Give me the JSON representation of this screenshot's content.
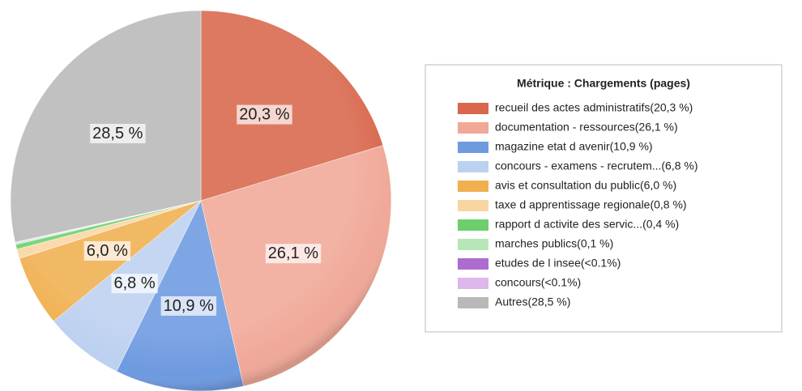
{
  "chart_data": {
    "type": "pie",
    "legend_title": "Métrique :  Chargements (pages)",
    "categories": [
      "recueil des actes administratifs(20,3 %)",
      "documentation - ressources(26,1 %)",
      "magazine etat d avenir(10,9 %)",
      "concours - examens - recrutem...(6,8 %)",
      "avis et consultation du public(6,0 %)",
      "taxe d apprentissage regionale(0,8 %)",
      "rapport d activite des servic...(0,4 %)",
      "marches publics(0,1 %)",
      "etudes de l insee(<0.1%)",
      "concours(<0.1%)",
      "Autres(28,5 %)"
    ],
    "values": [
      20.3,
      26.1,
      10.9,
      6.8,
      6.0,
      0.8,
      0.4,
      0.1,
      0.05,
      0.05,
      28.5
    ],
    "value_labels": [
      "20,3 %",
      "26,1 %",
      "10,9 %",
      "6,8 %",
      "6,0 %",
      null,
      null,
      null,
      null,
      null,
      "28,5 %"
    ],
    "colors": [
      "#d8674c",
      "#f0a898",
      "#6e9ae0",
      "#bcd0f0",
      "#f0b050",
      "#f8d6a2",
      "#6ccf6c",
      "#b8e6b8",
      "#ad6ccf",
      "#dcb8ec",
      "#b9b9b9"
    ],
    "legend": "right"
  }
}
